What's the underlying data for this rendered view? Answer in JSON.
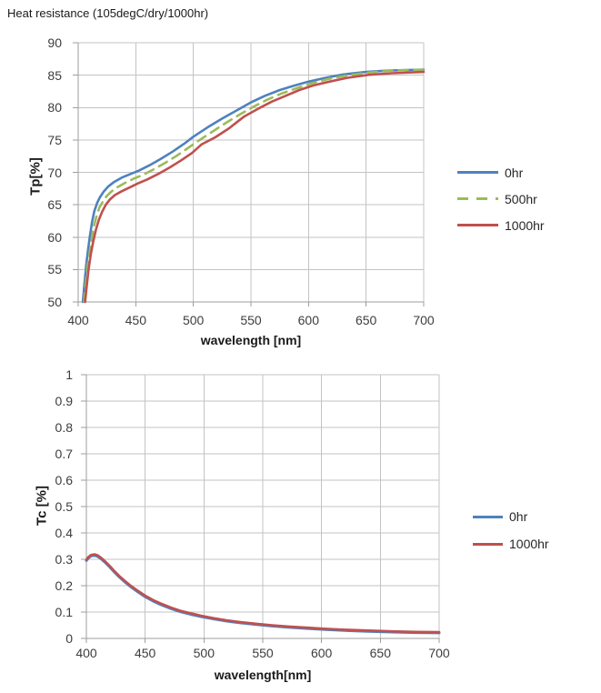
{
  "page": {
    "background": "#ffffff"
  },
  "chart_data": [
    {
      "type": "line",
      "title": "Heat resistance (105degC/dry/1000hr)",
      "xlabel": "wavelength [nm]",
      "ylabel": "Tp[%]",
      "xlim": [
        400,
        700
      ],
      "ylim": [
        50,
        90
      ],
      "x_ticks": [
        "400",
        "450",
        "500",
        "550",
        "600",
        "650",
        "700"
      ],
      "y_ticks": [
        "50",
        "55",
        "60",
        "65",
        "70",
        "75",
        "80",
        "85",
        "90"
      ],
      "grid": true,
      "legend_position": "right",
      "colors": {
        "grid": "#c3c3c3",
        "axis": "#9d9d9d"
      },
      "series": [
        {
          "name": "0hr",
          "color": "#4F81BD",
          "dash": "solid",
          "width": 2.6,
          "x": [
            404,
            405.5,
            407,
            408.5,
            410,
            412,
            414,
            416.5,
            419,
            422,
            426,
            431,
            438,
            445,
            453,
            462,
            472,
            482,
            492,
            500,
            512,
            525,
            538,
            550,
            562,
            575,
            588,
            600,
            615,
            630,
            650,
            670,
            700
          ],
          "y": [
            50,
            53,
            55.8,
            58,
            60,
            62.3,
            64,
            65.3,
            66.2,
            67,
            67.8,
            68.5,
            69.2,
            69.7,
            70.3,
            71.1,
            72.1,
            73.2,
            74.4,
            75.5,
            76.9,
            78.3,
            79.6,
            80.8,
            81.8,
            82.7,
            83.4,
            84,
            84.6,
            85.1,
            85.5,
            85.7,
            85.85
          ]
        },
        {
          "name": "500hr",
          "color": "#9BBB59",
          "dash": "dashed",
          "width": 2.6,
          "x": [
            405,
            406.5,
            408,
            410,
            411.5,
            413.5,
            416,
            418.5,
            421.5,
            424.5,
            428.5,
            434,
            441,
            448,
            456,
            465,
            475,
            485,
            495,
            503,
            515,
            527,
            540,
            552,
            564,
            577,
            590,
            602,
            617,
            632,
            652,
            672,
            700
          ],
          "y": [
            50,
            52.8,
            55.4,
            57.7,
            59.5,
            61.6,
            63.3,
            64.6,
            65.5,
            66.3,
            67,
            67.7,
            68.4,
            69,
            69.6,
            70.4,
            71.4,
            72.5,
            73.7,
            74.7,
            76.1,
            77.5,
            78.9,
            80.1,
            81.2,
            82.2,
            83,
            83.7,
            84.4,
            84.9,
            85.4,
            85.7,
            85.85
          ]
        },
        {
          "name": "1000hr",
          "color": "#C0504D",
          "dash": "solid",
          "width": 2.6,
          "x": [
            406,
            407.5,
            409,
            411,
            413,
            415.5,
            418,
            421,
            424,
            427.5,
            432,
            438,
            445,
            452,
            460,
            469,
            479,
            489,
            499,
            507,
            519,
            531,
            544,
            556,
            568,
            580,
            592,
            604,
            618,
            634,
            652,
            672,
            700
          ],
          "y": [
            50,
            52.6,
            55,
            57.4,
            59.3,
            61.2,
            62.7,
            64,
            65,
            65.8,
            66.5,
            67.1,
            67.7,
            68.3,
            68.9,
            69.7,
            70.7,
            71.8,
            73,
            74.3,
            75.4,
            76.8,
            78.6,
            79.8,
            80.9,
            81.8,
            82.7,
            83.4,
            84,
            84.6,
            85.05,
            85.3,
            85.5
          ]
        }
      ]
    },
    {
      "type": "line",
      "title": "",
      "xlabel": "wavelength[nm]",
      "ylabel": "Tc [%]",
      "xlim": [
        400,
        700
      ],
      "ylim": [
        0,
        1
      ],
      "x_ticks": [
        "400",
        "450",
        "500",
        "550",
        "600",
        "650",
        "700"
      ],
      "y_ticks": [
        "0",
        "0.1",
        "0.2",
        "0.3",
        "0.4",
        "0.5",
        "0.6",
        "0.7",
        "0.8",
        "0.9",
        "1"
      ],
      "grid": true,
      "legend_position": "right",
      "colors": {
        "grid": "#c3c3c3",
        "axis": "#9d9d9d"
      },
      "series": [
        {
          "name": "0hr",
          "color": "#4F81BD",
          "dash": "solid",
          "width": 3,
          "x": [
            400,
            402,
            404,
            407,
            410,
            413,
            416,
            420,
            424,
            428,
            433,
            438,
            444,
            450,
            457,
            464,
            472,
            480,
            489,
            498,
            508,
            519,
            531,
            544,
            558,
            572,
            587,
            602,
            620,
            640,
            660,
            680,
            700
          ],
          "y": [
            0.295,
            0.306,
            0.313,
            0.315,
            0.31,
            0.3,
            0.288,
            0.27,
            0.251,
            0.233,
            0.213,
            0.195,
            0.176,
            0.158,
            0.141,
            0.127,
            0.113,
            0.101,
            0.091,
            0.082,
            0.074,
            0.066,
            0.059,
            0.053,
            0.047,
            0.042,
            0.038,
            0.034,
            0.03,
            0.027,
            0.024,
            0.022,
            0.021
          ]
        },
        {
          "name": "1000hr",
          "color": "#C0504D",
          "dash": "solid",
          "width": 2.6,
          "x": [
            400,
            402,
            404,
            407,
            410,
            413,
            416,
            420,
            424,
            428,
            433,
            438,
            444,
            450,
            457,
            464,
            472,
            480,
            489,
            498,
            508,
            519,
            531,
            544,
            558,
            572,
            587,
            602,
            620,
            640,
            660,
            680,
            700
          ],
          "y": [
            0.299,
            0.31,
            0.317,
            0.319,
            0.314,
            0.304,
            0.292,
            0.274,
            0.255,
            0.237,
            0.217,
            0.199,
            0.18,
            0.162,
            0.145,
            0.131,
            0.117,
            0.105,
            0.095,
            0.086,
            0.077,
            0.069,
            0.062,
            0.056,
            0.05,
            0.045,
            0.041,
            0.037,
            0.033,
            0.03,
            0.027,
            0.025,
            0.024
          ]
        }
      ]
    }
  ]
}
